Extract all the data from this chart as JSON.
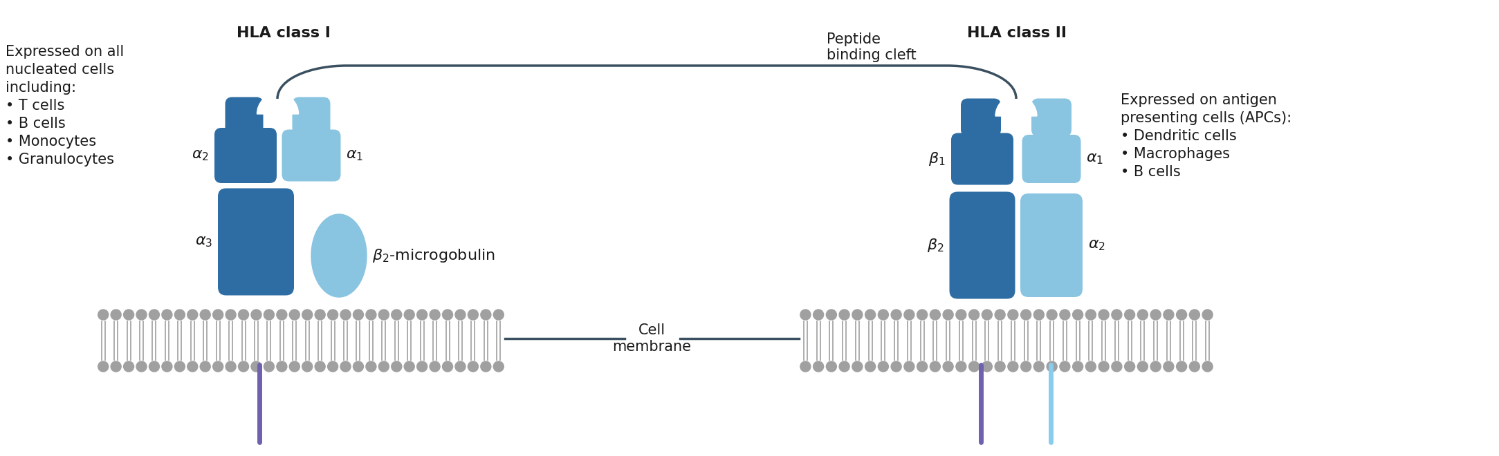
{
  "bg_color": "#ffffff",
  "dark_blue": "#2e6da4",
  "light_blue": "#89c4e1",
  "line_color": "#3a5060",
  "text_color": "#1a1a1a",
  "tail_purple": "#7060b0",
  "tail_light_blue": "#88ccee",
  "lipid_color": "#a0a0a0",
  "mem_bg": "#e8e8e8",
  "class1_title": "HLA class I",
  "class2_title": "HLA class II",
  "peptide_label": "Peptide\nbinding cleft",
  "cell_membrane_label": "Cell\nmembrane",
  "left_text1": "Expressed on all",
  "left_text2": "nucleated cells",
  "left_text3": "including:",
  "left_items": [
    "• T cells",
    "• B cells",
    "• Monocytes",
    "• Granulocytes"
  ],
  "right_text1": "Expressed on antigen",
  "right_text2": "presenting cells (APCs):",
  "right_items": [
    "• Dendritic cells",
    "• Macrophages",
    "• B cells"
  ],
  "figw": 21.67,
  "figh": 6.6,
  "dpi": 100
}
